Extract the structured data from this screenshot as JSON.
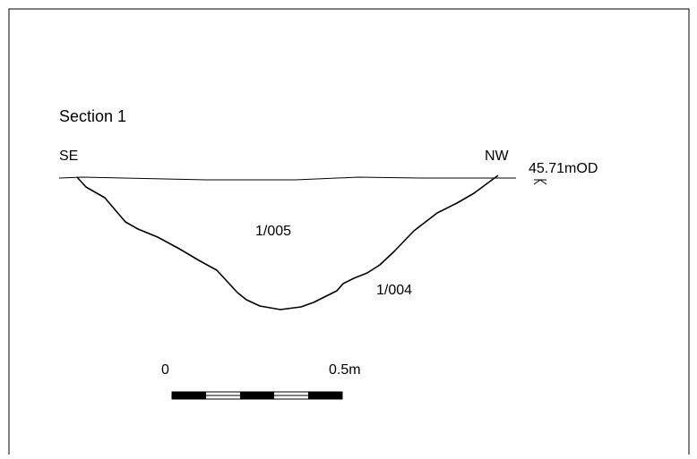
{
  "drawing": {
    "title": "Section 1",
    "orientation_left": "SE",
    "orientation_right": "NW",
    "level_label": "45.71mOD",
    "fill_label": "1/005",
    "cut_label": "1/004",
    "scale": {
      "start_label": "0",
      "end_label": "0.5m",
      "segments": 5
    },
    "colors": {
      "line": "#000000",
      "background": "#ffffff",
      "frame": "#000000"
    }
  }
}
